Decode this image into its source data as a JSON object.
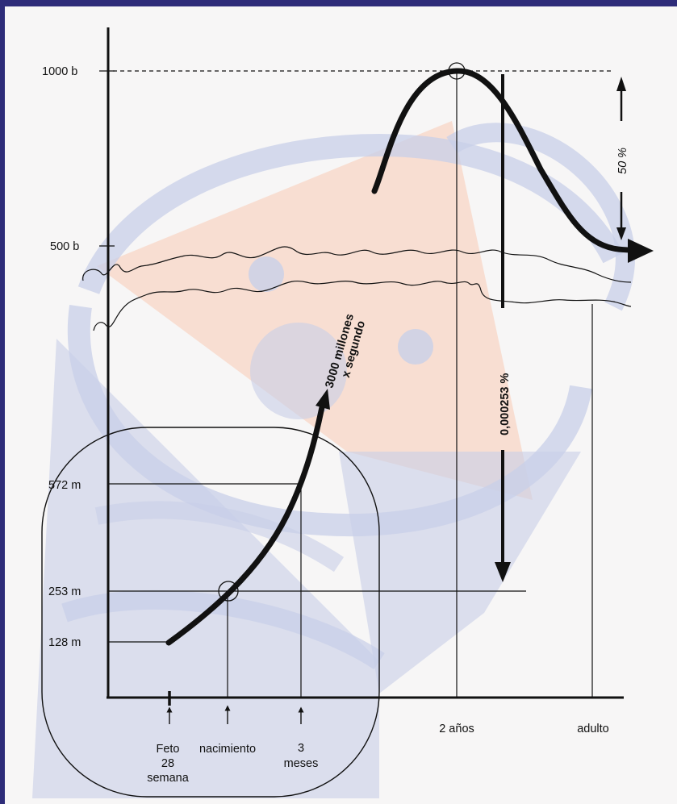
{
  "y_axis": {
    "ticks": [
      {
        "id": "1000b",
        "label": "1000 b"
      },
      {
        "id": "500b",
        "label": "500 b"
      },
      {
        "id": "572m",
        "label": "572 m"
      },
      {
        "id": "253m",
        "label": "253 m"
      },
      {
        "id": "128m",
        "label": "128 m"
      }
    ]
  },
  "x_axis": {
    "feto": [
      "Feto",
      "28",
      "semana"
    ],
    "nacimiento": "nacimiento",
    "tres_meses": [
      "3",
      "meses"
    ],
    "dos_anos": "2 años",
    "adulto": "adulto"
  },
  "annotations": {
    "rate": [
      "3000 millones",
      "x segundo"
    ],
    "percent_small": "0,000253 %",
    "percent_50": "50 %"
  },
  "colors": {
    "frame": "#2e2c79",
    "background": "#f7f6f6",
    "watermark_blue": "#c8cfe8",
    "watermark_orange": "#f8d6c6",
    "ink": "#111111"
  }
}
